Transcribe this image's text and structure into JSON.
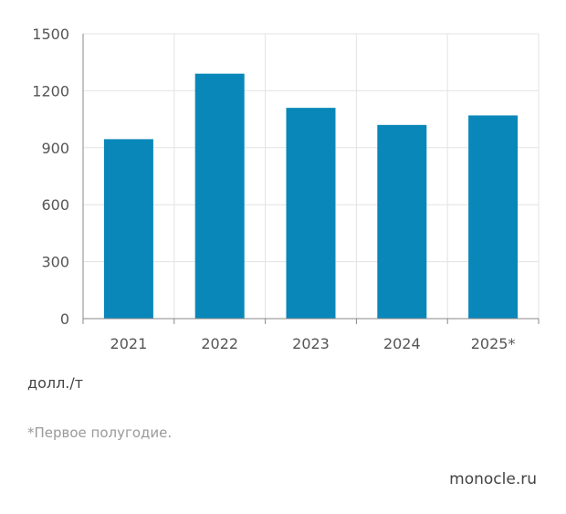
{
  "chart_data": {
    "type": "bar",
    "categories": [
      "2021",
      "2022",
      "2023",
      "2024",
      "2025*"
    ],
    "values": [
      945,
      1290,
      1110,
      1020,
      1070
    ],
    "ylim": [
      0,
      1500
    ],
    "yticks": [
      0,
      300,
      600,
      900,
      1200,
      1500
    ],
    "ytick_labels": [
      "0",
      "300",
      "600",
      "900",
      "1200",
      "1500"
    ],
    "grid": true,
    "bar_color": "#0a87b9",
    "ylabel": "долл./т"
  },
  "footnote": "*Первое полугодие.",
  "source": "monocle.ru",
  "colors": {
    "bar": "#0a87b9",
    "grid": "#e3e3e3",
    "axis": "#888888"
  }
}
